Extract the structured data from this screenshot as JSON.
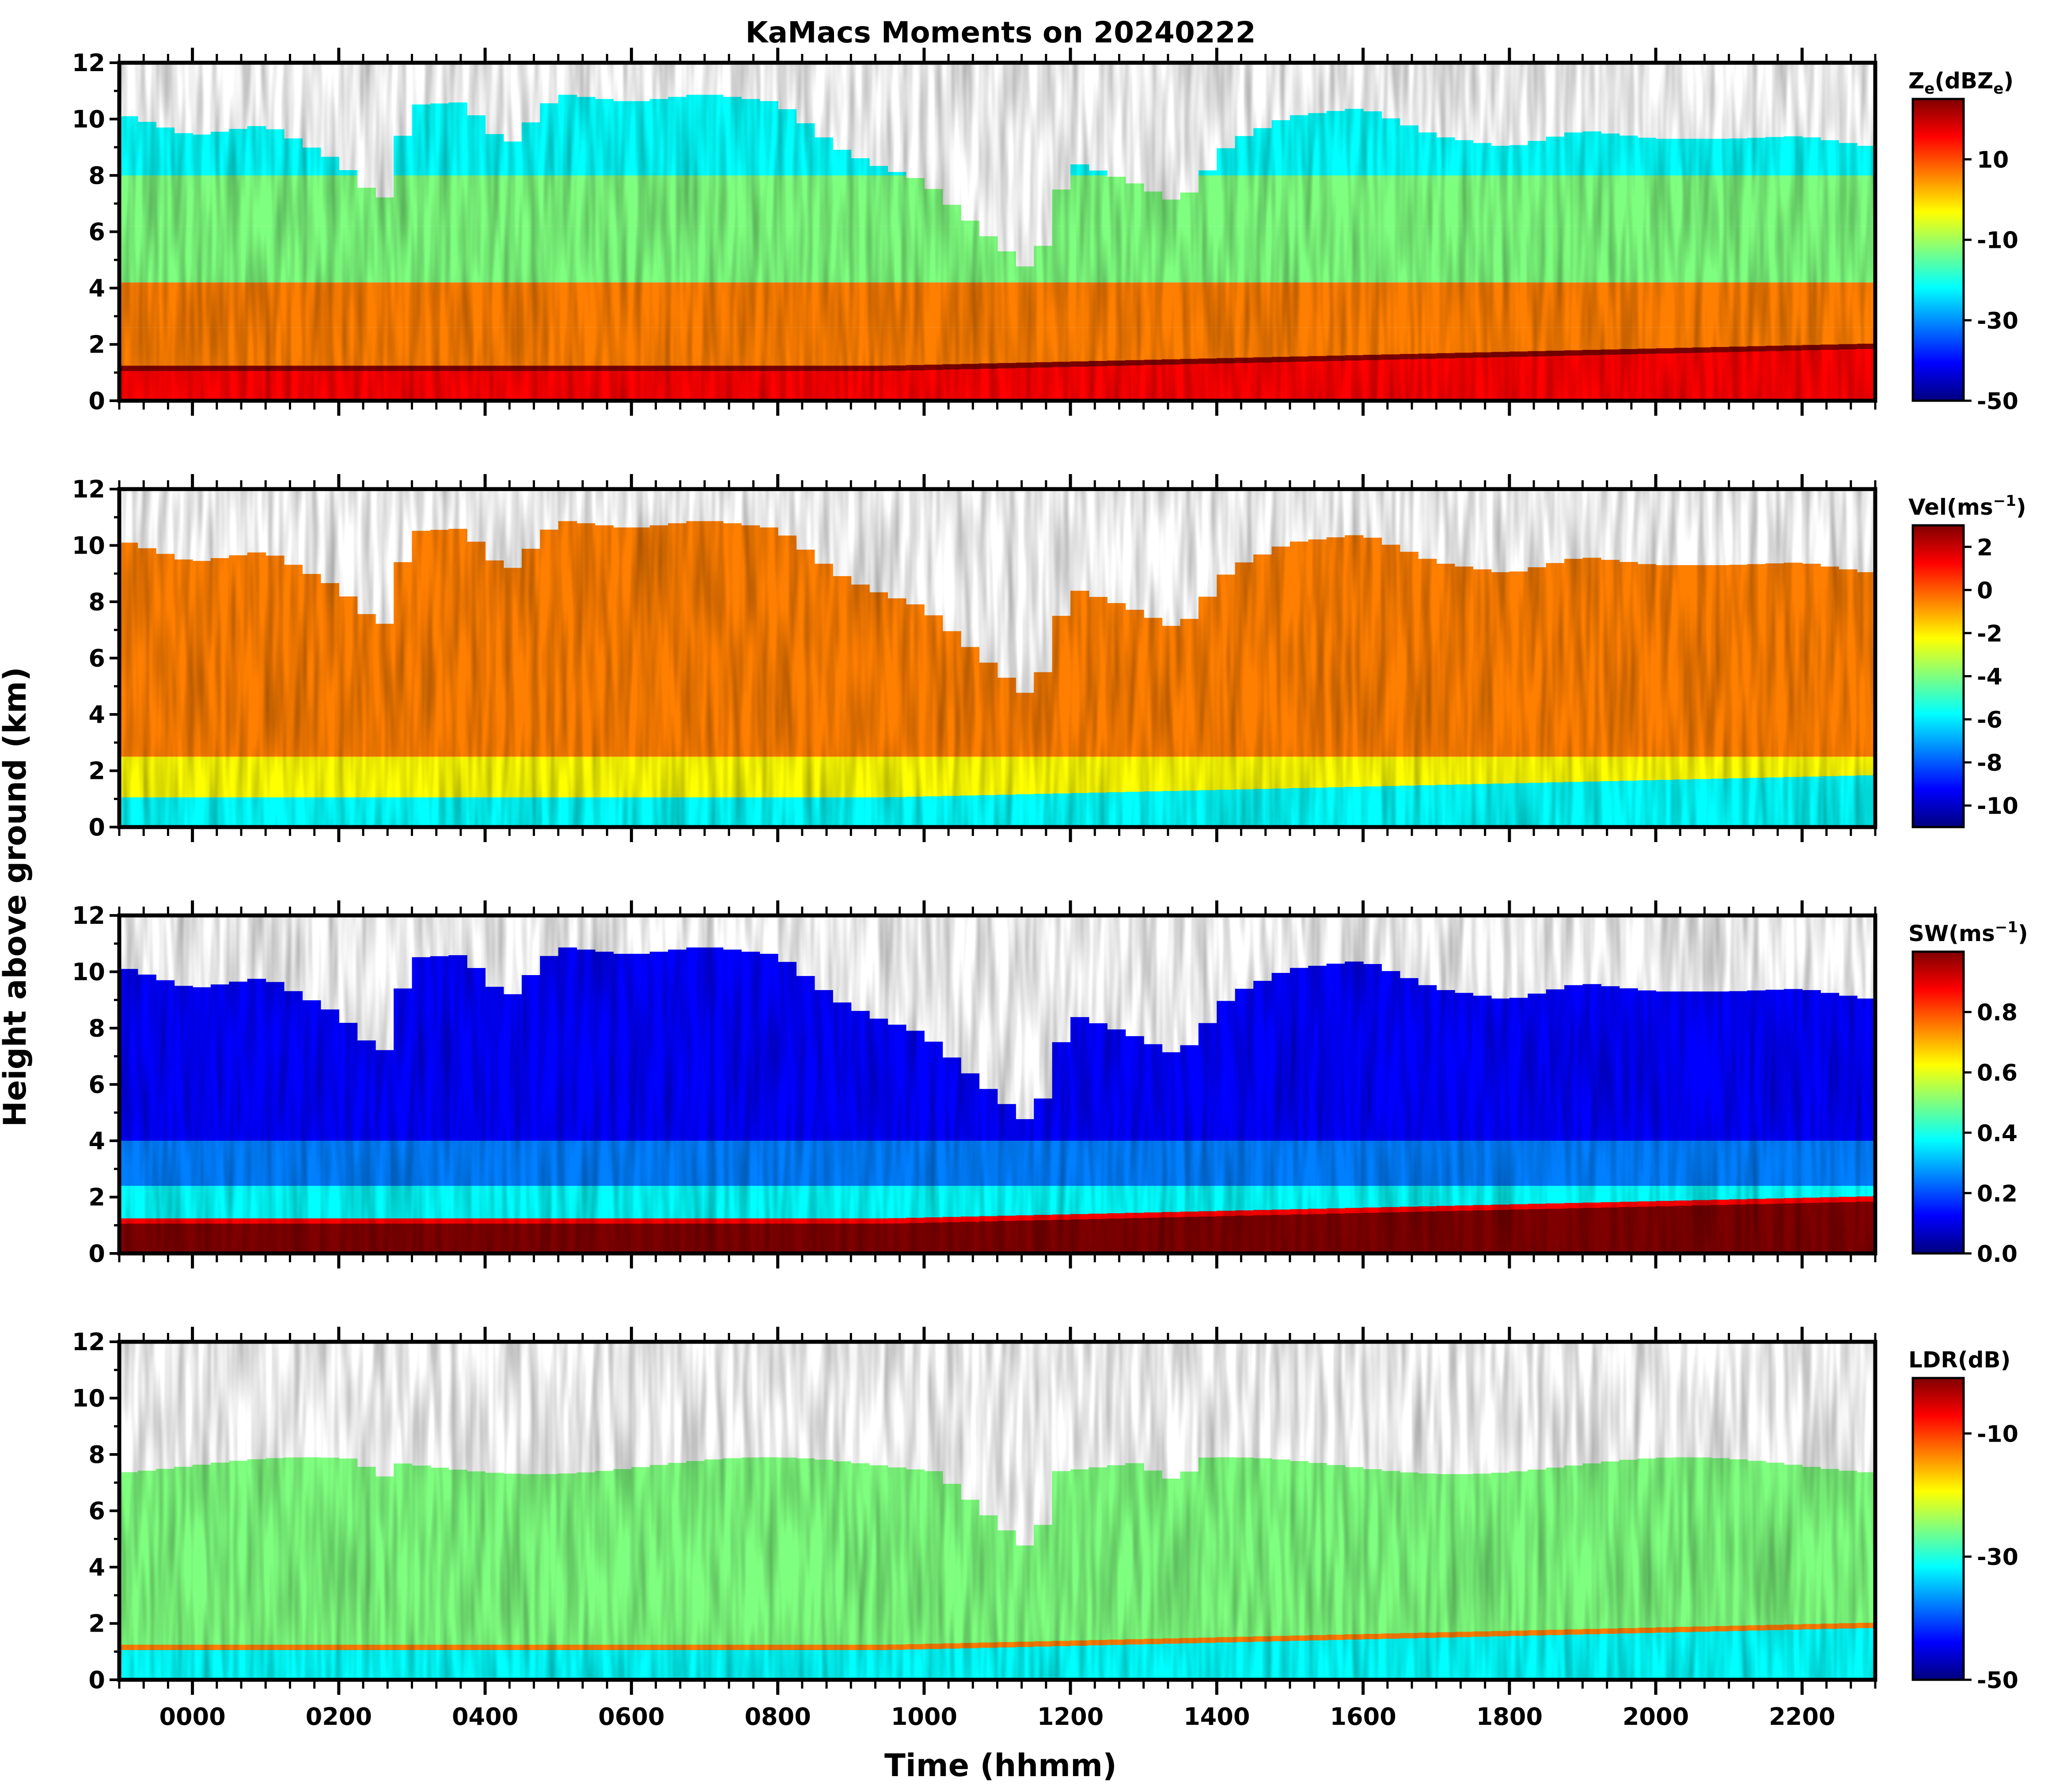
{
  "figure": {
    "title": "KaMacs Moments on 20240222",
    "xlabel": "Time (hhmm)",
    "ylabel": "Height above ground (km)"
  },
  "colormap": [
    "#00007f",
    "#0000ff",
    "#007fff",
    "#00ffff",
    "#7fff7f",
    "#ffff00",
    "#ff7f00",
    "#ff0000",
    "#7f0000"
  ],
  "chart_data": [
    {
      "type": "heatmap",
      "name": "reflectivity",
      "colorbar_label": "Ze(dBZe)",
      "colorbar_label_parts": {
        "base": "Z",
        "sub": "e",
        "mid": "(dBZ",
        "sub2": "e",
        "end": ")"
      },
      "colorbar_range": [
        -50,
        25
      ],
      "colorbar_ticks": [
        10,
        -10,
        -30,
        -50
      ],
      "x_range_hours": [
        -1.0,
        23.0
      ],
      "ylim": [
        0,
        12
      ],
      "yticks": [
        0,
        2,
        4,
        6,
        8,
        10,
        12
      ],
      "xticks": [
        "0000",
        "0200",
        "0400",
        "0600",
        "0800",
        "1000",
        "1200",
        "1400",
        "1600",
        "1800",
        "2000",
        "2200"
      ]
    },
    {
      "type": "heatmap",
      "name": "velocity",
      "colorbar_label": "Vel(ms-1)",
      "colorbar_label_parts": {
        "base": "Vel(ms",
        "sup": "−1",
        "end": ")"
      },
      "colorbar_range": [
        -11,
        3
      ],
      "colorbar_ticks": [
        2,
        0,
        -2,
        -4,
        -6,
        -8,
        -10
      ],
      "x_range_hours": [
        -1.0,
        23.0
      ],
      "ylim": [
        0,
        12
      ],
      "yticks": [
        0,
        2,
        4,
        6,
        8,
        10,
        12
      ],
      "xticks": [
        "0000",
        "0200",
        "0400",
        "0600",
        "0800",
        "1000",
        "1200",
        "1400",
        "1600",
        "1800",
        "2000",
        "2200"
      ]
    },
    {
      "type": "heatmap",
      "name": "spectrum-width",
      "colorbar_label": "SW(ms-1)",
      "colorbar_label_parts": {
        "base": "SW(ms",
        "sup": "−1",
        "end": ")"
      },
      "colorbar_range": [
        0.0,
        1.0
      ],
      "colorbar_ticks": [
        "0.8",
        "0.6",
        "0.4",
        "0.2",
        "0.0"
      ],
      "x_range_hours": [
        -1.0,
        23.0
      ],
      "ylim": [
        0,
        12
      ],
      "yticks": [
        0,
        2,
        4,
        6,
        8,
        10,
        12
      ],
      "xticks": [
        "0000",
        "0200",
        "0400",
        "0600",
        "0800",
        "1000",
        "1200",
        "1400",
        "1600",
        "1800",
        "2000",
        "2200"
      ]
    },
    {
      "type": "heatmap",
      "name": "ldr",
      "colorbar_label": "LDR(dB)",
      "colorbar_label_parts": {
        "base": "LDR(dB)"
      },
      "colorbar_range": [
        -50,
        -1
      ],
      "colorbar_ticks": [
        -10,
        -30,
        -50
      ],
      "x_range_hours": [
        -1.0,
        23.0
      ],
      "ylim": [
        0,
        12
      ],
      "yticks": [
        0,
        2,
        4,
        6,
        8,
        10,
        12
      ],
      "xticks": [
        "0000",
        "0200",
        "0400",
        "0600",
        "0800",
        "1000",
        "1200",
        "1400",
        "1600",
        "1800",
        "2000",
        "2200"
      ]
    }
  ]
}
